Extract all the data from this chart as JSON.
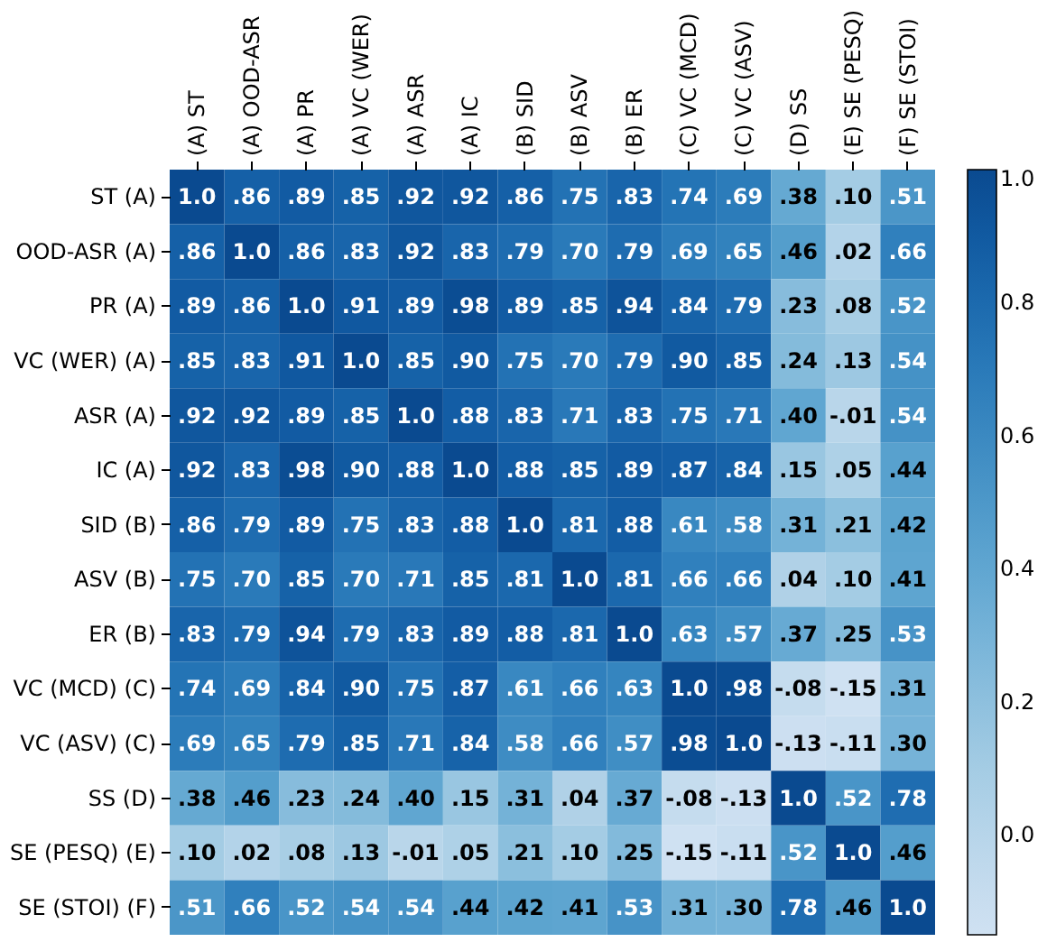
{
  "chart_data": {
    "type": "heatmap",
    "categories": [
      "(A) ST",
      "(A) OOD-ASR",
      "(A) PR",
      "(A) VC (WER)",
      "(A) ASR",
      "(A) IC",
      "(B) SID",
      "(B) ASV",
      "(B) ER",
      "(C) VC (MCD)",
      "(C) VC (ASV)",
      "(D) SS",
      "(E) SE (PESQ)",
      "(F) SE (STOI)"
    ],
    "y_categories": [
      "ST (A)",
      "OOD-ASR (A)",
      "PR (A)",
      "VC (WER) (A)",
      "ASR (A)",
      "IC (A)",
      "SID (B)",
      "ASV (B)",
      "ER (B)",
      "VC (MCD) (C)",
      "VC (ASV) (C)",
      "SS (D)",
      "SE (PESQ) (E)",
      "SE (STOI) (F)"
    ],
    "cells": [
      [
        1.0,
        0.86,
        0.89,
        0.85,
        0.92,
        0.92,
        0.86,
        0.75,
        0.83,
        0.74,
        0.69,
        0.38,
        0.1,
        0.51
      ],
      [
        0.86,
        1.0,
        0.86,
        0.83,
        0.92,
        0.83,
        0.79,
        0.7,
        0.79,
        0.69,
        0.65,
        0.46,
        0.02,
        0.66
      ],
      [
        0.89,
        0.86,
        1.0,
        0.91,
        0.89,
        0.98,
        0.89,
        0.85,
        0.94,
        0.84,
        0.79,
        0.23,
        0.08,
        0.52
      ],
      [
        0.85,
        0.83,
        0.91,
        1.0,
        0.85,
        0.9,
        0.75,
        0.7,
        0.79,
        0.9,
        0.85,
        0.24,
        0.13,
        0.54
      ],
      [
        0.92,
        0.92,
        0.89,
        0.85,
        1.0,
        0.88,
        0.83,
        0.71,
        0.83,
        0.75,
        0.71,
        0.4,
        -0.01,
        0.54
      ],
      [
        0.92,
        0.83,
        0.98,
        0.9,
        0.88,
        1.0,
        0.88,
        0.85,
        0.89,
        0.87,
        0.84,
        0.15,
        0.05,
        0.44
      ],
      [
        0.86,
        0.79,
        0.89,
        0.75,
        0.83,
        0.88,
        1.0,
        0.81,
        0.88,
        0.61,
        0.58,
        0.31,
        0.21,
        0.42
      ],
      [
        0.75,
        0.7,
        0.85,
        0.7,
        0.71,
        0.85,
        0.81,
        1.0,
        0.81,
        0.66,
        0.66,
        0.04,
        0.1,
        0.41
      ],
      [
        0.83,
        0.79,
        0.94,
        0.79,
        0.83,
        0.89,
        0.88,
        0.81,
        1.0,
        0.63,
        0.57,
        0.37,
        0.25,
        0.53
      ],
      [
        0.74,
        0.69,
        0.84,
        0.9,
        0.75,
        0.87,
        0.61,
        0.66,
        0.63,
        1.0,
        0.98,
        -0.08,
        -0.15,
        0.31
      ],
      [
        0.69,
        0.65,
        0.79,
        0.85,
        0.71,
        0.84,
        0.58,
        0.66,
        0.57,
        0.98,
        1.0,
        -0.13,
        -0.11,
        0.3
      ],
      [
        0.38,
        0.46,
        0.23,
        0.24,
        0.4,
        0.15,
        0.31,
        0.04,
        0.37,
        -0.08,
        -0.13,
        1.0,
        0.52,
        0.78
      ],
      [
        0.1,
        0.02,
        0.08,
        0.13,
        -0.01,
        0.05,
        0.21,
        0.1,
        0.25,
        -0.15,
        -0.11,
        0.52,
        1.0,
        0.46
      ],
      [
        0.51,
        0.66,
        0.52,
        0.54,
        0.54,
        0.44,
        0.42,
        0.41,
        0.53,
        0.31,
        0.3,
        0.78,
        0.46,
        1.0
      ]
    ],
    "cell_labels": [
      [
        "1.0",
        ".86",
        ".89",
        ".85",
        ".92",
        ".92",
        ".86",
        ".75",
        ".83",
        ".74",
        ".69",
        ".38",
        ".10",
        ".51"
      ],
      [
        ".86",
        "1.0",
        ".86",
        ".83",
        ".92",
        ".83",
        ".79",
        ".70",
        ".79",
        ".69",
        ".65",
        ".46",
        ".02",
        ".66"
      ],
      [
        ".89",
        ".86",
        "1.0",
        ".91",
        ".89",
        ".98",
        ".89",
        ".85",
        ".94",
        ".84",
        ".79",
        ".23",
        ".08",
        ".52"
      ],
      [
        ".85",
        ".83",
        ".91",
        "1.0",
        ".85",
        ".90",
        ".75",
        ".70",
        ".79",
        ".90",
        ".85",
        ".24",
        ".13",
        ".54"
      ],
      [
        ".92",
        ".92",
        ".89",
        ".85",
        "1.0",
        ".88",
        ".83",
        ".71",
        ".83",
        ".75",
        ".71",
        ".40",
        "-.01",
        ".54"
      ],
      [
        ".92",
        ".83",
        ".98",
        ".90",
        ".88",
        "1.0",
        ".88",
        ".85",
        ".89",
        ".87",
        ".84",
        ".15",
        ".05",
        ".44"
      ],
      [
        ".86",
        ".79",
        ".89",
        ".75",
        ".83",
        ".88",
        "1.0",
        ".81",
        ".88",
        ".61",
        ".58",
        ".31",
        ".21",
        ".42"
      ],
      [
        ".75",
        ".70",
        ".85",
        ".70",
        ".71",
        ".85",
        ".81",
        "1.0",
        ".81",
        ".66",
        ".66",
        ".04",
        ".10",
        ".41"
      ],
      [
        ".83",
        ".79",
        ".94",
        ".79",
        ".83",
        ".89",
        ".88",
        ".81",
        "1.0",
        ".63",
        ".57",
        ".37",
        ".25",
        ".53"
      ],
      [
        ".74",
        ".69",
        ".84",
        ".90",
        ".75",
        ".87",
        ".61",
        ".66",
        ".63",
        "1.0",
        ".98",
        "-.08",
        "-.15",
        ".31"
      ],
      [
        ".69",
        ".65",
        ".79",
        ".85",
        ".71",
        ".84",
        ".58",
        ".66",
        ".57",
        ".98",
        "1.0",
        "-.13",
        "-.11",
        ".30"
      ],
      [
        ".38",
        ".46",
        ".23",
        ".24",
        ".40",
        ".15",
        ".31",
        ".04",
        ".37",
        "-.08",
        "-.13",
        "1.0",
        ".52",
        ".78"
      ],
      [
        ".10",
        ".02",
        ".08",
        ".13",
        "-.01",
        ".05",
        ".21",
        ".10",
        ".25",
        "-.15",
        "-.11",
        ".52",
        "1.0",
        ".46"
      ],
      [
        ".51",
        ".66",
        ".52",
        ".54",
        ".54",
        ".44",
        ".42",
        ".41",
        ".53",
        ".31",
        ".30",
        ".78",
        ".46",
        "1.0"
      ]
    ],
    "clim": [
      -0.15,
      1.0
    ],
    "cticks": [
      {
        "value": 0,
        "label": "0.0"
      },
      {
        "value": 0.2,
        "label": "0.2"
      },
      {
        "value": 0.4,
        "label": "0.4"
      },
      {
        "value": 0.6,
        "label": "0.6"
      },
      {
        "value": 0.8,
        "label": "0.8"
      },
      {
        "value": 1.0,
        "label": "1.0"
      }
    ]
  }
}
